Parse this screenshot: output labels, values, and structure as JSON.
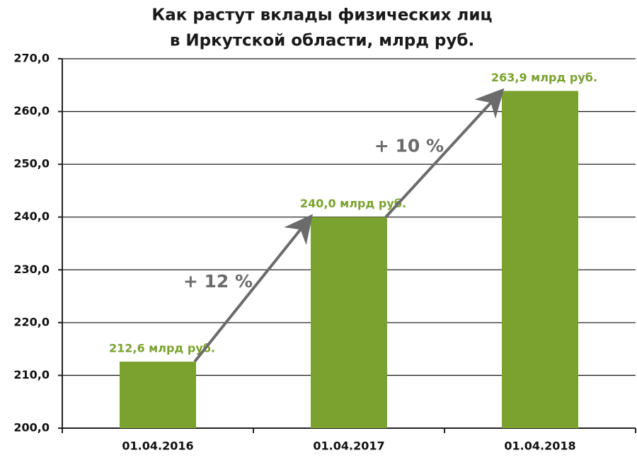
{
  "chart_data": {
    "type": "bar",
    "title": [
      "Как растут вклады физических лиц",
      "в Иркутской области,  млрд руб."
    ],
    "categories": [
      "01.04.2016",
      "01.04.2017",
      "01.04.2018"
    ],
    "values": [
      212.6,
      240.0,
      263.9
    ],
    "value_labels": [
      "212,6 млрд руб.",
      "240,0 млрд руб.",
      "263,9 млрд руб."
    ],
    "color": "#7ba12f",
    "ylim": [
      200,
      270
    ],
    "yticks": [
      {
        "value": 200,
        "label": "200,0"
      },
      {
        "value": 210,
        "label": "210,0"
      },
      {
        "value": 220,
        "label": "220,0"
      },
      {
        "value": 230,
        "label": "230,0"
      },
      {
        "value": 240,
        "label": "240,0"
      },
      {
        "value": 250,
        "label": "250,0"
      },
      {
        "value": 260,
        "label": "260,0"
      },
      {
        "value": 270,
        "label": "270,0"
      }
    ],
    "grid": true,
    "annotations": [
      "+ 12 %",
      "+ 10 %"
    ]
  }
}
